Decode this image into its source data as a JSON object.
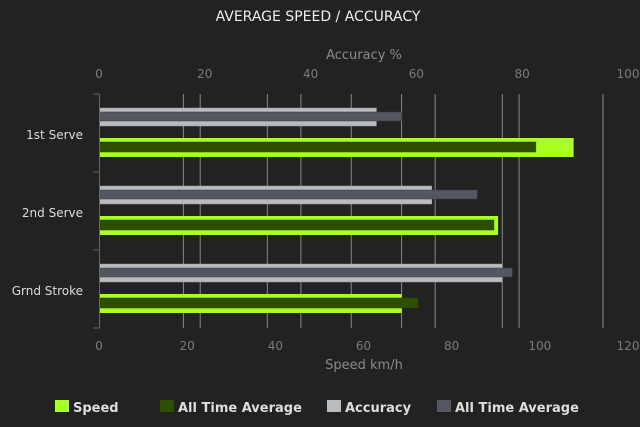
{
  "chart_data": {
    "type": "bar",
    "orientation": "horizontal",
    "title": "AVERAGE SPEED / ACCURACY",
    "categories": [
      "1st Serve",
      "2nd Serve",
      "Grnd Stroke"
    ],
    "top_axis": {
      "label": "Accuracy %",
      "range": [
        0,
        100
      ],
      "ticks": [
        "0",
        "20",
        "40",
        "60",
        "80",
        "100"
      ]
    },
    "bottom_axis": {
      "label": "Speed km/h",
      "range": [
        0,
        120
      ],
      "ticks": [
        "0",
        "20",
        "40",
        "60",
        "80",
        "100",
        "120"
      ]
    },
    "series": [
      {
        "name": "Speed",
        "axis": "bottom",
        "color": "#aaff22",
        "values": [
          113,
          95,
          72
        ]
      },
      {
        "name": "All Time Average",
        "axis": "bottom",
        "color": "#2f4f00",
        "values": [
          104,
          94,
          76
        ]
      },
      {
        "name": "Accuracy",
        "axis": "top",
        "color": "#b8bcbf",
        "values": [
          55,
          66,
          80
        ]
      },
      {
        "name": "All Time Average",
        "axis": "top",
        "color": "#535860",
        "values": [
          60,
          75,
          82
        ]
      }
    ],
    "legend": "bottom",
    "grid": true
  }
}
